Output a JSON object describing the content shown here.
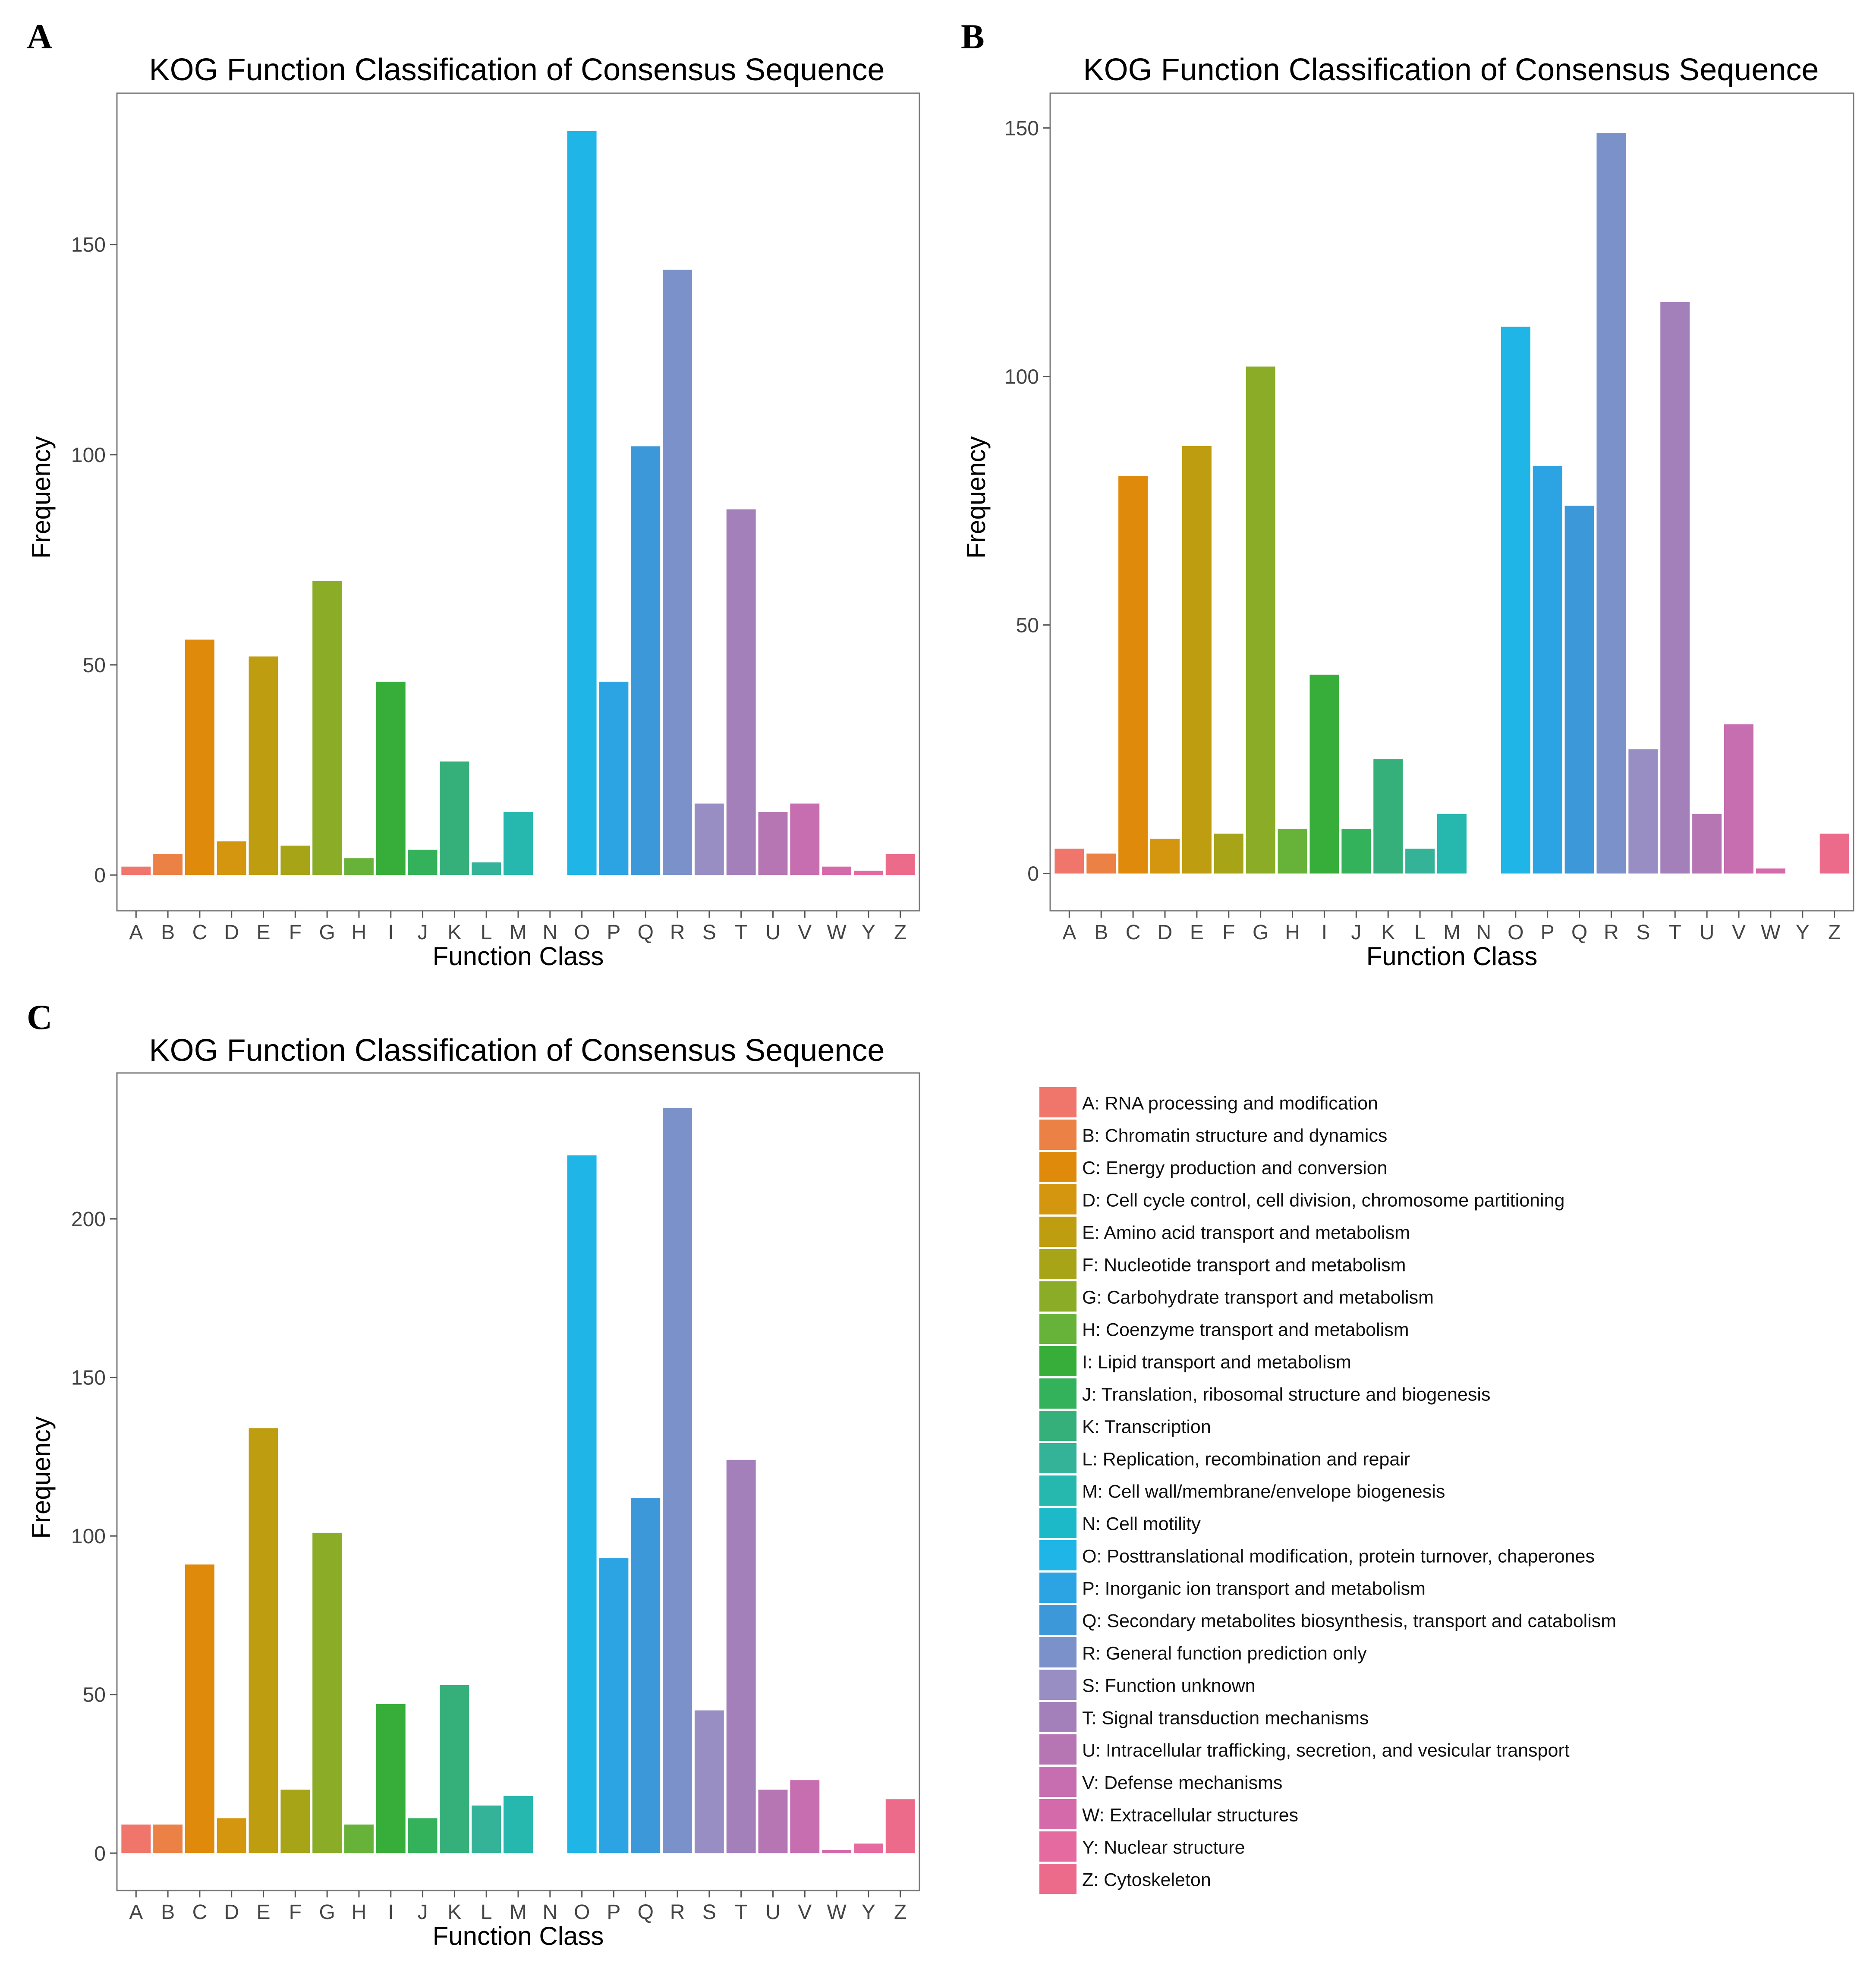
{
  "colors": {
    "A": "#F0766C",
    "B": "#EC8146",
    "C": "#E08A0B",
    "D": "#D4960E",
    "E": "#BF9D10",
    "F": "#A8A418",
    "G": "#8BAC27",
    "H": "#67B33A",
    "I": "#38AE3A",
    "J": "#34B15B",
    "K": "#36B07A",
    "L": "#34B398",
    "M": "#26B7AE",
    "N": "#1CBAC8",
    "O": "#1FB5E7",
    "P": "#2CA4E4",
    "Q": "#3D98D9",
    "R": "#7A92C9",
    "S": "#998EC3",
    "T": "#A480BB",
    "U": "#B576B3",
    "V": "#C66EB0",
    "W": "#D56AAB",
    "Y": "#E56A9F",
    "Z": "#EC6B8B"
  },
  "chart_data": [
    {
      "panel": "A",
      "type": "bar",
      "title": "KOG Function Classification of Consensus Sequence",
      "xlabel": "Function Class",
      "ylabel": "Frequency",
      "categories": [
        "A",
        "B",
        "C",
        "D",
        "E",
        "F",
        "G",
        "H",
        "I",
        "J",
        "K",
        "L",
        "M",
        "N",
        "O",
        "P",
        "Q",
        "R",
        "S",
        "T",
        "U",
        "V",
        "W",
        "Y",
        "Z"
      ],
      "values": [
        2,
        5,
        56,
        8,
        52,
        7,
        70,
        4,
        46,
        6,
        27,
        3,
        15,
        0,
        177,
        46,
        102,
        144,
        17,
        87,
        15,
        17,
        2,
        1,
        5
      ],
      "ylim": [
        -8.5,
        186
      ],
      "yticks": [
        0,
        50,
        100,
        150
      ],
      "grid": false
    },
    {
      "panel": "B",
      "type": "bar",
      "title": "KOG Function Classification of Consensus Sequence",
      "xlabel": "Function Class",
      "ylabel": "Frequency",
      "categories": [
        "A",
        "B",
        "C",
        "D",
        "E",
        "F",
        "G",
        "H",
        "I",
        "J",
        "K",
        "L",
        "M",
        "N",
        "O",
        "P",
        "Q",
        "R",
        "S",
        "T",
        "U",
        "V",
        "W",
        "Y",
        "Z"
      ],
      "values": [
        5,
        4,
        80,
        7,
        86,
        8,
        102,
        9,
        40,
        9,
        23,
        5,
        12,
        0,
        110,
        82,
        74,
        149,
        25,
        115,
        12,
        30,
        1,
        0,
        8
      ],
      "ylim": [
        -7.5,
        157
      ],
      "yticks": [
        0,
        50,
        100,
        150
      ],
      "grid": false
    },
    {
      "panel": "C",
      "type": "bar",
      "title": "KOG Function Classification of Consensus Sequence",
      "xlabel": "Function Class",
      "ylabel": "Frequency",
      "categories": [
        "A",
        "B",
        "C",
        "D",
        "E",
        "F",
        "G",
        "H",
        "I",
        "J",
        "K",
        "L",
        "M",
        "N",
        "O",
        "P",
        "Q",
        "R",
        "S",
        "T",
        "U",
        "V",
        "W",
        "Y",
        "Z"
      ],
      "values": [
        9,
        9,
        91,
        11,
        134,
        20,
        101,
        9,
        47,
        11,
        53,
        15,
        18,
        0,
        220,
        93,
        112,
        235,
        45,
        124,
        20,
        23,
        1,
        3,
        17
      ],
      "ylim": [
        -11.8,
        246
      ],
      "yticks": [
        0,
        50,
        100,
        150,
        200
      ],
      "grid": false
    }
  ],
  "legend": {
    "placement": "bottom-right",
    "items": [
      {
        "key": "A",
        "label": "A: RNA processing and modification"
      },
      {
        "key": "B",
        "label": "B: Chromatin structure and dynamics"
      },
      {
        "key": "C",
        "label": "C: Energy production and conversion"
      },
      {
        "key": "D",
        "label": "D: Cell cycle control, cell division, chromosome partitioning"
      },
      {
        "key": "E",
        "label": "E: Amino acid transport and metabolism"
      },
      {
        "key": "F",
        "label": "F: Nucleotide transport and metabolism"
      },
      {
        "key": "G",
        "label": "G: Carbohydrate transport and metabolism"
      },
      {
        "key": "H",
        "label": "H: Coenzyme transport and metabolism"
      },
      {
        "key": "I",
        "label": "I: Lipid transport and metabolism"
      },
      {
        "key": "J",
        "label": "J: Translation, ribosomal structure and biogenesis"
      },
      {
        "key": "K",
        "label": "K: Transcription"
      },
      {
        "key": "L",
        "label": "L: Replication, recombination and repair"
      },
      {
        "key": "M",
        "label": "M: Cell wall/membrane/envelope biogenesis"
      },
      {
        "key": "N",
        "label": "N: Cell motility"
      },
      {
        "key": "O",
        "label": "O: Posttranslational modification, protein turnover, chaperones"
      },
      {
        "key": "P",
        "label": "P: Inorganic ion transport and metabolism"
      },
      {
        "key": "Q",
        "label": "Q: Secondary metabolites biosynthesis, transport and catabolism"
      },
      {
        "key": "R",
        "label": "R: General function prediction only"
      },
      {
        "key": "S",
        "label": "S: Function unknown"
      },
      {
        "key": "T",
        "label": "T: Signal transduction mechanisms"
      },
      {
        "key": "U",
        "label": "U: Intracellular trafficking, secretion, and vesicular transport"
      },
      {
        "key": "V",
        "label": "V: Defense mechanisms"
      },
      {
        "key": "W",
        "label": "W: Extracellular structures"
      },
      {
        "key": "Y",
        "label": "Y: Nuclear structure"
      },
      {
        "key": "Z",
        "label": "Z: Cytoskeleton"
      }
    ]
  }
}
